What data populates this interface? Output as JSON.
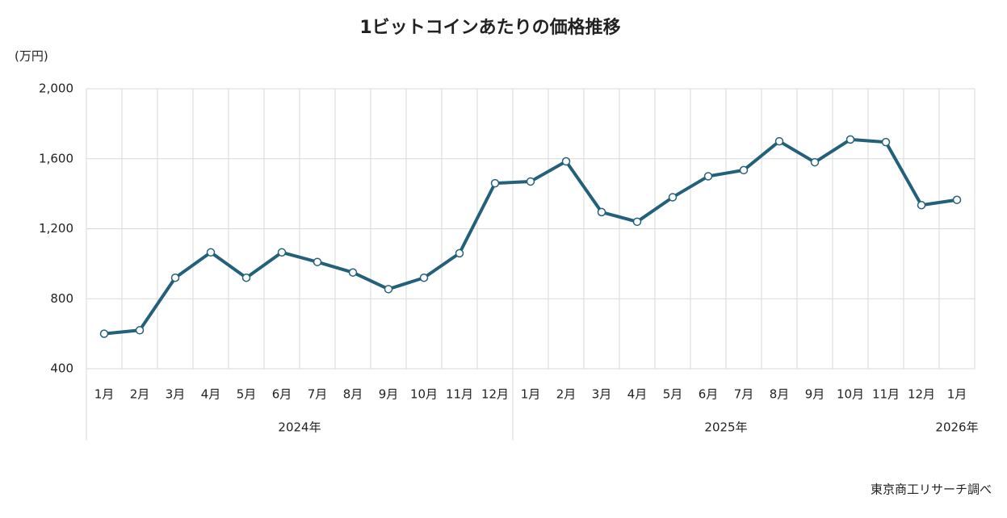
{
  "chart_data": {
    "type": "line",
    "title": "1ビットコインあたりの価格推移",
    "y_label": "(万円)",
    "source": "東京商工リサーチ調べ",
    "categories": [
      "1月",
      "2月",
      "3月",
      "4月",
      "5月",
      "6月",
      "7月",
      "8月",
      "9月",
      "10月",
      "11月",
      "12月",
      "1月",
      "2月",
      "3月",
      "4月",
      "5月",
      "6月",
      "7月",
      "8月",
      "9月",
      "10月",
      "11月",
      "12月",
      "1月"
    ],
    "x_groups": [
      "2024年",
      "2025年",
      "2026年"
    ],
    "values": [
      600,
      620,
      920,
      1065,
      920,
      1065,
      1010,
      950,
      855,
      920,
      1060,
      1460,
      1470,
      1585,
      1295,
      1240,
      1380,
      1500,
      1535,
      1700,
      1580,
      1710,
      1695,
      1335,
      1365
    ],
    "color": "#23607a",
    "ylim": [
      400,
      2000
    ],
    "yticks": [
      400,
      800,
      {
        "value": 1200,
        "label": "1,200"
      },
      {
        "value": 1600,
        "label": "1,600"
      },
      {
        "value": 2000,
        "label": "2,000"
      }
    ],
    "grid": true
  }
}
